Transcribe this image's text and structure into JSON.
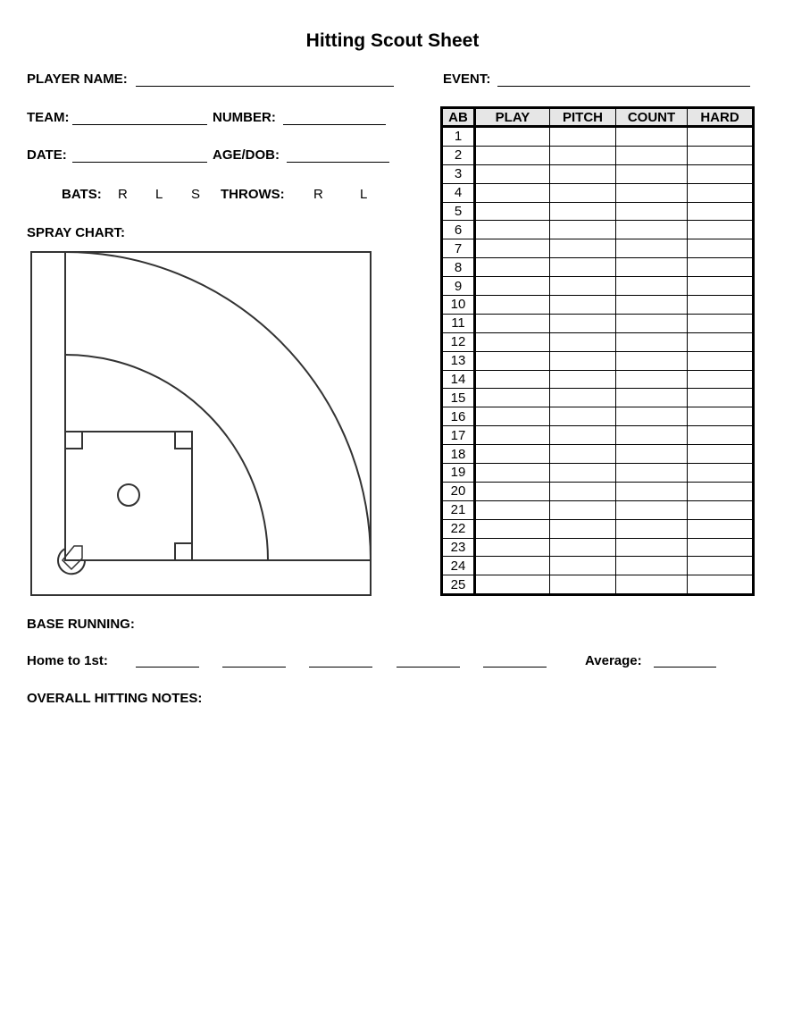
{
  "title": "Hitting Scout Sheet",
  "fields": {
    "player_name": "PLAYER NAME:",
    "event": "EVENT:",
    "team": "TEAM:",
    "number": "NUMBER:",
    "date": "DATE:",
    "age_dob": "AGE/DOB:",
    "bats": "BATS:",
    "bats_options": [
      "R",
      "L",
      "S"
    ],
    "throws": "THROWS:",
    "throws_options": [
      "R",
      "L"
    ],
    "spray_chart": "SPRAY CHART:"
  },
  "table": {
    "headers": [
      "AB",
      "PLAY",
      "PITCH",
      "COUNT",
      "HARD"
    ],
    "rows": [
      "1",
      "2",
      "3",
      "4",
      "5",
      "6",
      "7",
      "8",
      "9",
      "10",
      "11",
      "12",
      "13",
      "14",
      "15",
      "16",
      "17",
      "18",
      "19",
      "20",
      "21",
      "22",
      "23",
      "24",
      "25"
    ]
  },
  "base_running": {
    "label": "BASE RUNNING:",
    "home_to_first": "Home to 1st:",
    "average": "Average:"
  },
  "notes": {
    "label": "OVERALL HITTING NOTES:"
  }
}
